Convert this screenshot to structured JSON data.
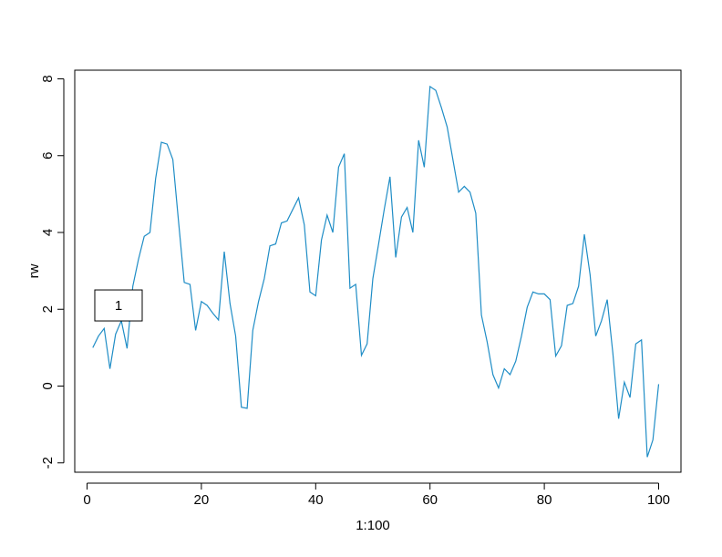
{
  "chart_data": {
    "type": "line",
    "xlabel": "1:100",
    "ylabel": "rw",
    "xlim": [
      0,
      100
    ],
    "ylim": [
      -2,
      8
    ],
    "x_ticks": [
      0,
      20,
      40,
      60,
      80,
      100
    ],
    "y_ticks": [
      -2,
      0,
      2,
      4,
      6,
      8
    ],
    "grid": false,
    "line_color": "#1f8dc6",
    "series": [
      {
        "x": [
          1,
          2,
          3,
          4,
          5,
          6,
          7,
          8,
          9,
          10,
          11,
          12,
          13,
          14,
          15,
          16,
          17,
          18,
          19,
          20,
          21,
          22,
          23,
          24,
          25,
          26,
          27,
          28,
          29,
          30,
          31,
          32,
          33,
          34,
          35,
          36,
          37,
          38,
          39,
          40,
          41,
          42,
          43,
          44,
          45,
          46,
          47,
          48,
          49,
          50,
          51,
          52,
          53,
          54,
          55,
          56,
          57,
          58,
          59,
          60,
          61,
          62,
          63,
          64,
          65,
          66,
          67,
          68,
          69,
          70,
          71,
          72,
          73,
          74,
          75,
          76,
          77,
          78,
          79,
          80,
          81,
          82,
          83,
          84,
          85,
          86,
          87,
          88,
          89,
          90,
          91,
          92,
          93,
          94,
          95,
          96,
          97,
          98,
          99,
          100
        ],
        "values": [
          1.0,
          1.3,
          1.5,
          0.45,
          1.35,
          1.7,
          0.98,
          2.6,
          3.3,
          3.9,
          4.0,
          5.4,
          6.35,
          6.3,
          5.9,
          4.3,
          2.7,
          2.65,
          1.45,
          2.2,
          2.1,
          1.9,
          1.72,
          3.5,
          2.15,
          1.3,
          -0.55,
          -0.58,
          1.45,
          2.2,
          2.8,
          3.65,
          3.7,
          4.25,
          4.3,
          4.6,
          4.9,
          4.2,
          2.45,
          2.35,
          3.8,
          4.45,
          4.0,
          5.7,
          6.05,
          2.55,
          2.65,
          0.8,
          1.1,
          2.8,
          3.7,
          4.6,
          5.45,
          3.35,
          4.4,
          4.65,
          4.0,
          6.4,
          5.7,
          7.8,
          7.7,
          7.25,
          6.75,
          5.9,
          5.05,
          5.2,
          5.05,
          4.5,
          1.85,
          1.15,
          0.3,
          -0.05,
          0.45,
          0.3,
          0.65,
          1.3,
          2.05,
          2.45,
          2.4,
          2.4,
          2.25,
          0.78,
          1.05,
          2.1,
          2.15,
          2.6,
          3.95,
          2.9,
          1.3,
          1.7,
          2.25,
          0.85,
          -0.85,
          0.1,
          -0.3,
          1.1,
          1.2,
          -1.85,
          -1.4,
          0.05
        ]
      }
    ],
    "annotations": [
      {
        "text": "1",
        "x": 5.5,
        "y": 2.1
      }
    ]
  }
}
